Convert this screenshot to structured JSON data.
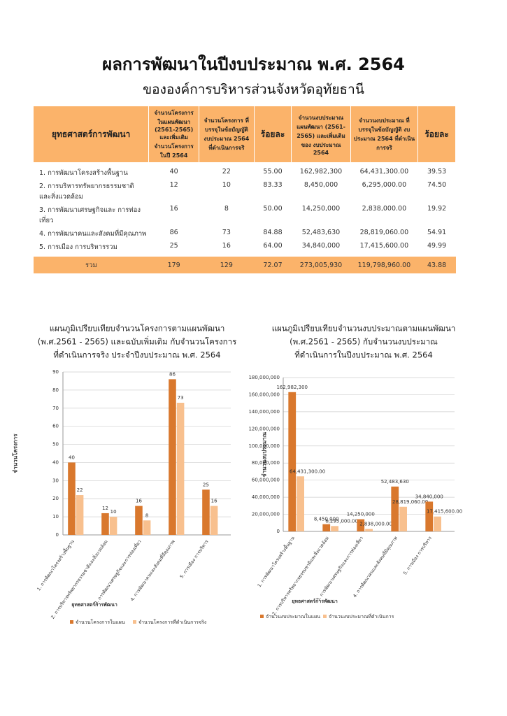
{
  "header": {
    "title": "ผลการพัฒนาในปีงบประมาณ  พ.ศ. 2564",
    "subtitle": "ขององค์การบริหารส่วนจังหวัดอุทัยธานี"
  },
  "table": {
    "columns": [
      "ยุทธศาสตร์การพัฒนา",
      "จำนวนโครงการในแผนพัฒนา (2561-2565) และเพิ่มเติม จำนวนโครงการ ในปี 2564",
      "จำนวนโครงการ ที่บรรจุในข้อบัญญัติ งบประมาณ 2564 ที่ดำเนินการจริ",
      "ร้อยละ",
      "จำนวนงบประมาณ แผนพัฒนา (2561-2565) และเพิ่มเติม ของ งบประมาณ 2564",
      "จำนวนงบประมาณ ที่บรรจุในข้อบัญญัติ งบประมาณ 2564 ที่ดำเนินการจริ",
      "ร้อยละ"
    ],
    "rows": [
      [
        "1. การพัฒนาโครงสร้างพื้นฐาน",
        "40",
        "22",
        "55.00",
        "162,982,300",
        "64,431,300.00",
        "39.53"
      ],
      [
        "2. การบริหารทรัพยากรธรรมชาติ และสิ่งแวดล้อม",
        "12",
        "10",
        "83.33",
        "8,450,000",
        "6,295,000.00",
        "74.50"
      ],
      [
        "3. การพัฒนาเศรษฐกิจและ การท่องเที่ยว",
        "16",
        "8",
        "50.00",
        "14,250,000",
        "2,838,000.00",
        "19.92"
      ],
      [
        "4. การพัฒนาคนและสังคมที่มีคุณภาพ",
        "86",
        "73",
        "84.88",
        "52,483,630",
        "28,819,060.00",
        "54.91"
      ],
      [
        "5. การเมือง การบริหารรวม",
        "25",
        "16",
        "64.00",
        "34,840,000",
        "17,415,600.00",
        "49.99"
      ]
    ],
    "total": [
      "รวม",
      "179",
      "129",
      "72.07",
      "273,005,930",
      "119,798,960.00",
      "43.88"
    ]
  },
  "chart_data": [
    {
      "type": "bar",
      "title": [
        "แผนภูมิเปรียบเทียบจำนวนโครงการตามแผนพัฒนา",
        "(พ.ศ.2561 - 2565) และฉบับเพิ่มเติม กับจำนวนโครงการ",
        "ที่ดำเนินการจริง ประจำปีงบประมาณ พ.ศ. 2564"
      ],
      "y_label": "จำนวนโครงการ",
      "x_label": "ยุทธศาสตร์การพัฒนา",
      "categories": [
        "1. การพัฒนาโครงสร้างพื้นฐาน",
        "2. การบริหารทรัพยากรธรรมชาติและสิ่งแวดล้อม",
        "3. การพัฒนาเศรษฐกิจและการท่องเที่ยว",
        "4. การพัฒนาคนและสังคมที่มีคุณภาพ",
        "5. การเมือง การบริหาร"
      ],
      "series": [
        {
          "name": "จำนวนโครงการในแผน",
          "color": "#d9782d",
          "values": [
            40,
            12,
            16,
            86,
            25
          ]
        },
        {
          "name": "จำนวนโครงการที่ดำเนินการจริง",
          "color": "#f8c08e",
          "values": [
            22,
            10,
            8,
            73,
            16
          ]
        }
      ],
      "ylim": [
        0,
        90
      ],
      "yticks": [
        0,
        10,
        20,
        30,
        40,
        50,
        60,
        70,
        80,
        90
      ],
      "grid": true,
      "legend": "bottom"
    },
    {
      "type": "bar",
      "title": [
        "แผนภูมิเปรียบเทียบจำนวนงบประมาณตามแผนพัฒนา",
        "(พ.ศ.2561 - 2565) กับจำนวนงบประมาณ",
        "ที่ดำเนินการในปีงบประมาณ พ.ศ. 2564"
      ],
      "y_label": "จำนวนงบประมาณ",
      "x_label": "ยุทธศาสตร์การพัฒนา",
      "categories": [
        "1. การพัฒนาโครงสร้างพื้นฐาน",
        "2. การบริหารทรัพยากรธรรมชาติและสิ่งแวดล้อม",
        "3. การพัฒนาเศรษฐกิจและการท่องเที่ยว",
        "4. การพัฒนาคนและสังคมที่มีคุณภาพ",
        "5. การเมือง การบริหาร"
      ],
      "series": [
        {
          "name": "จำนวนงบประมาณในแผน",
          "color": "#d9782d",
          "values": [
            162982300,
            8450000,
            14250000,
            52483630,
            34840000
          ],
          "value_labels": [
            "162,982,300",
            "8,450,000",
            "14,250,000",
            "52,483,630",
            "34,840,000"
          ]
        },
        {
          "name": "จำนวนงบประมาณที่ดำเนินการ",
          "color": "#f8c08e",
          "values": [
            64431300,
            6295000,
            2838000,
            28819060,
            17415600
          ],
          "value_labels": [
            "64,431,300.00",
            "6,295,000.00",
            "2,838,000.00",
            "28,819,060.00",
            "17,415,600.00"
          ]
        }
      ],
      "ylim": [
        0,
        180000000
      ],
      "yticks": [
        {
          "value": 0,
          "label": "0"
        },
        {
          "value": 20000000,
          "label": "20,000,000"
        },
        {
          "value": 40000000,
          "label": "40,000,000"
        },
        {
          "value": 60000000,
          "label": "60,000,000"
        },
        {
          "value": 80000000,
          "label": "80,000,000"
        },
        {
          "value": 100000000,
          "label": "100,000,000"
        },
        {
          "value": 120000000,
          "label": "120,000,000"
        },
        {
          "value": 140000000,
          "label": "140,000,000"
        },
        {
          "value": 160000000,
          "label": "160,000,000"
        },
        {
          "value": 180000000,
          "label": "180,000,000"
        }
      ],
      "grid": true,
      "legend": "bottom"
    }
  ]
}
